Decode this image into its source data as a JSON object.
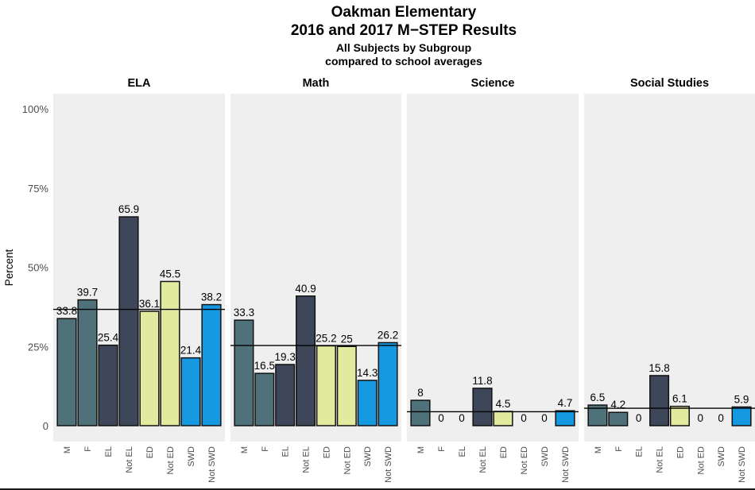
{
  "chart_data": {
    "type": "bar",
    "title": "Oakman Elementary",
    "title_line2": "2016 and 2017 M−STEP Results",
    "subtitle": "All Subjects by Subgroup",
    "subtitle_line2": "compared to school averages",
    "ylabel": "Percent",
    "xlabel": "",
    "ylim": [
      0,
      100
    ],
    "y_ticks": [
      {
        "value": 0,
        "label": "0"
      },
      {
        "value": 25,
        "label": "25%"
      },
      {
        "value": 50,
        "label": "50%"
      },
      {
        "value": 75,
        "label": "75%"
      },
      {
        "value": 100,
        "label": "100%"
      }
    ],
    "grid": false,
    "categories": [
      "M",
      "F",
      "EL",
      "Not EL",
      "ED",
      "Not ED",
      "SWD",
      "Not SWD"
    ],
    "category_colors": [
      "#4f727a",
      "#4f727a",
      "#3d4759",
      "#3d4759",
      "#e2eaa0",
      "#e2eaa0",
      "#1499e0",
      "#1499e0"
    ],
    "panel_background": "#efefef",
    "panels": [
      {
        "name": "ELA",
        "values": [
          33.8,
          39.7,
          25.4,
          65.9,
          36.1,
          45.5,
          21.4,
          38.2
        ],
        "labels": [
          "33.8",
          "39.7",
          "25.4",
          "65.9",
          "36.1",
          "45.5",
          "21.4",
          "38.2"
        ],
        "school_average": 36.7
      },
      {
        "name": "Math",
        "values": [
          33.3,
          16.5,
          19.3,
          40.9,
          25.2,
          25,
          14.3,
          26.2
        ],
        "labels": [
          "33.3",
          "16.5",
          "19.3",
          "40.9",
          "25.2",
          "25",
          "14.3",
          "26.2"
        ],
        "school_average": 25.3
      },
      {
        "name": "Science",
        "values": [
          8,
          0,
          0,
          11.8,
          4.5,
          0,
          0,
          4.7
        ],
        "labels": [
          "8",
          "0",
          "0",
          "11.8",
          "4.5",
          "0",
          "0",
          "4.7"
        ],
        "school_average": 4.4
      },
      {
        "name": "Social Studies",
        "values": [
          6.5,
          4.2,
          0,
          15.8,
          6.1,
          0,
          0,
          5.9
        ],
        "labels": [
          "6.5",
          "4.2",
          "0",
          "15.8",
          "6.1",
          "0",
          "0",
          "5.9"
        ],
        "school_average": 5.5
      }
    ]
  }
}
